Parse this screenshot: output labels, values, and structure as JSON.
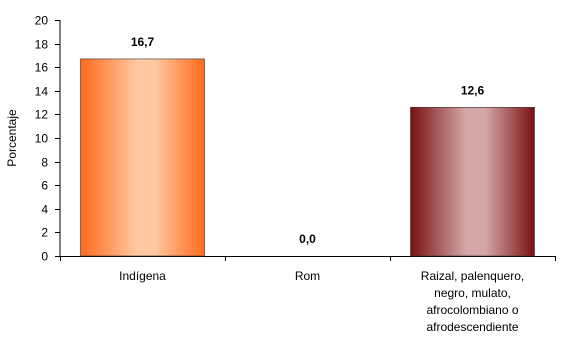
{
  "chart_data": {
    "type": "bar",
    "categories": [
      [
        "Indígena"
      ],
      [
        "Rom"
      ],
      [
        "Raizal, palenquero,",
        "negro, mulato,",
        "afrocolombiano o",
        "afrodescendiente"
      ]
    ],
    "values": [
      16.7,
      0.0,
      12.6
    ],
    "value_labels": [
      "16,7",
      "0,0",
      "12,6"
    ],
    "ylabel": "Porcentaje",
    "xlabel": "",
    "ylim": [
      0,
      20
    ],
    "yticks": [
      0,
      2,
      4,
      6,
      8,
      10,
      12,
      14,
      16,
      18,
      20
    ],
    "grid": false,
    "bar_colors": [
      {
        "edge": "#ff6a1a",
        "light": "#ffc8a0"
      },
      {
        "edge": "#e08a8a",
        "light": "#f2c2c2"
      },
      {
        "edge": "#7a0f12",
        "light": "#d4a8a8"
      }
    ]
  }
}
